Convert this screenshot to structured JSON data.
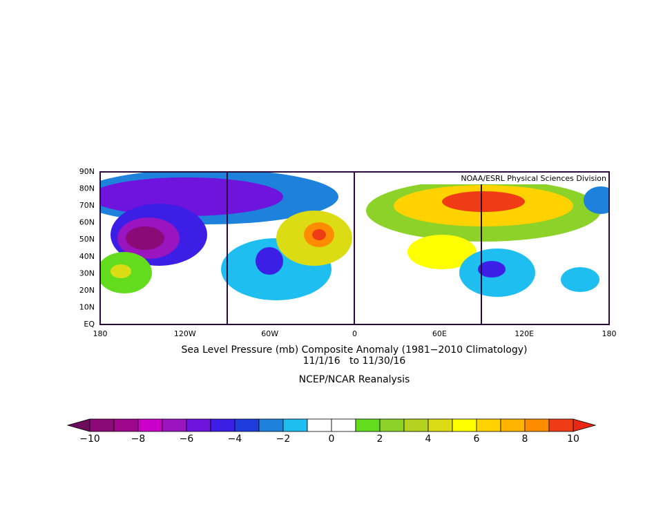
{
  "map": {
    "credit": "NOAA/ESRL Physical Sciences Division",
    "lat_labels": [
      "90N",
      "80N",
      "70N",
      "60N",
      "50N",
      "40N",
      "30N",
      "20N",
      "10N",
      "EQ"
    ],
    "lon_labels": [
      "180",
      "120W",
      "60W",
      "0",
      "60E",
      "120E",
      "180"
    ],
    "title": "Sea Level Pressure (mb) Composite Anomaly (1981−2010 Climatology)",
    "dates": "11/1/16   to 11/30/16",
    "source": "NCEP/NCAR Reanalysis"
  },
  "colorbar": {
    "labels": [
      "−10",
      "−8",
      "−6",
      "−4",
      "−2",
      "0",
      "2",
      "4",
      "6",
      "8",
      "10"
    ],
    "low_color": "#6e0a5a",
    "high_color": "#e62814",
    "colors": [
      "#8c0a78",
      "#a0088c",
      "#c800c8",
      "#9a14c0",
      "#6e14dc",
      "#3c1ee6",
      "#1e3cdc",
      "#1e82dc",
      "#1ebef0",
      "#ffffff",
      "#ffffff",
      "#64dc1e",
      "#8cd228",
      "#b4d21e",
      "#dcdc14",
      "#ffff00",
      "#ffd200",
      "#ffb400",
      "#ff8c00",
      "#f03c14"
    ]
  }
}
